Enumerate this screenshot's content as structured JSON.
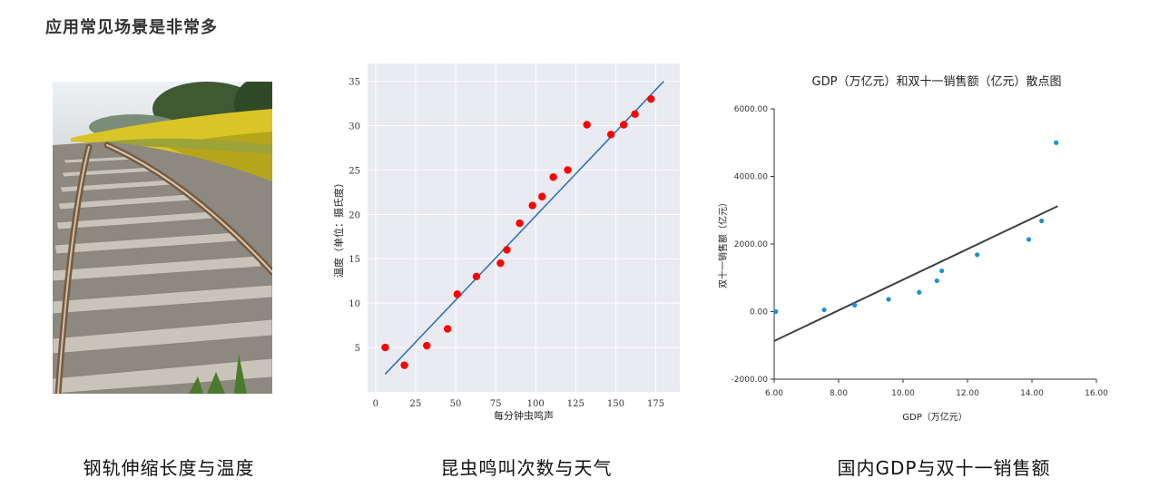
{
  "heading": "应用常见场景是非常多",
  "captions": {
    "rail": "钢轨伸缩长度与温度",
    "cricket": "昆虫鸣叫次数与天气",
    "gdp": "国内GDP与双十一销售额"
  },
  "chart_data": [
    {
      "type": "scatter",
      "title": "",
      "xlabel": "每分钟虫鸣声",
      "ylabel": "温度（单位：摄氏度）",
      "xlim": [
        -5,
        190
      ],
      "ylim": [
        0,
        37
      ],
      "xticks": [
        0,
        25,
        50,
        75,
        100,
        125,
        150,
        175
      ],
      "yticks": [
        5,
        10,
        15,
        20,
        25,
        30,
        35
      ],
      "grid": true,
      "background": "#eaeaf2",
      "point_color": "#ff0000",
      "line_color": "#2e75b6",
      "points": [
        [
          6,
          5
        ],
        [
          18,
          3
        ],
        [
          32,
          5.2
        ],
        [
          45,
          7.1
        ],
        [
          51,
          11
        ],
        [
          63,
          13
        ],
        [
          78,
          14.5
        ],
        [
          82,
          16
        ],
        [
          90,
          19
        ],
        [
          98,
          21
        ],
        [
          104,
          22
        ],
        [
          111,
          24.2
        ],
        [
          120,
          25
        ],
        [
          132,
          30.1
        ],
        [
          147,
          29
        ],
        [
          155,
          30.1
        ],
        [
          162,
          31.3
        ],
        [
          172,
          33
        ]
      ],
      "fit_line": [
        [
          6,
          2
        ],
        [
          180,
          35
        ]
      ]
    },
    {
      "type": "scatter",
      "title": "GDP（万亿元）和双十一销售额（亿元）散点图",
      "xlabel": "GDP（万亿元）",
      "ylabel": "双十一销售额（亿元）",
      "xlim": [
        6,
        16
      ],
      "ylim": [
        -2000,
        6000
      ],
      "xticks": [
        "6.00",
        "8.00",
        "10.00",
        "12.00",
        "14.00",
        "16.00"
      ],
      "yticks": [
        "-2000.00",
        "0.00",
        "2000.00",
        "4000.00",
        "6000.00"
      ],
      "grid": false,
      "point_color": "#1e90d6",
      "line_color": "#404040",
      "points": [
        [
          6.05,
          0
        ],
        [
          7.55,
          52
        ],
        [
          8.5,
          191
        ],
        [
          9.55,
          362
        ],
        [
          10.5,
          571
        ],
        [
          11.05,
          912
        ],
        [
          11.2,
          1207
        ],
        [
          12.3,
          1682
        ],
        [
          13.9,
          2135
        ],
        [
          14.3,
          2684
        ],
        [
          14.75,
          5000
        ]
      ],
      "fit_line": [
        [
          6.0,
          -870
        ],
        [
          14.8,
          3120
        ]
      ]
    }
  ]
}
